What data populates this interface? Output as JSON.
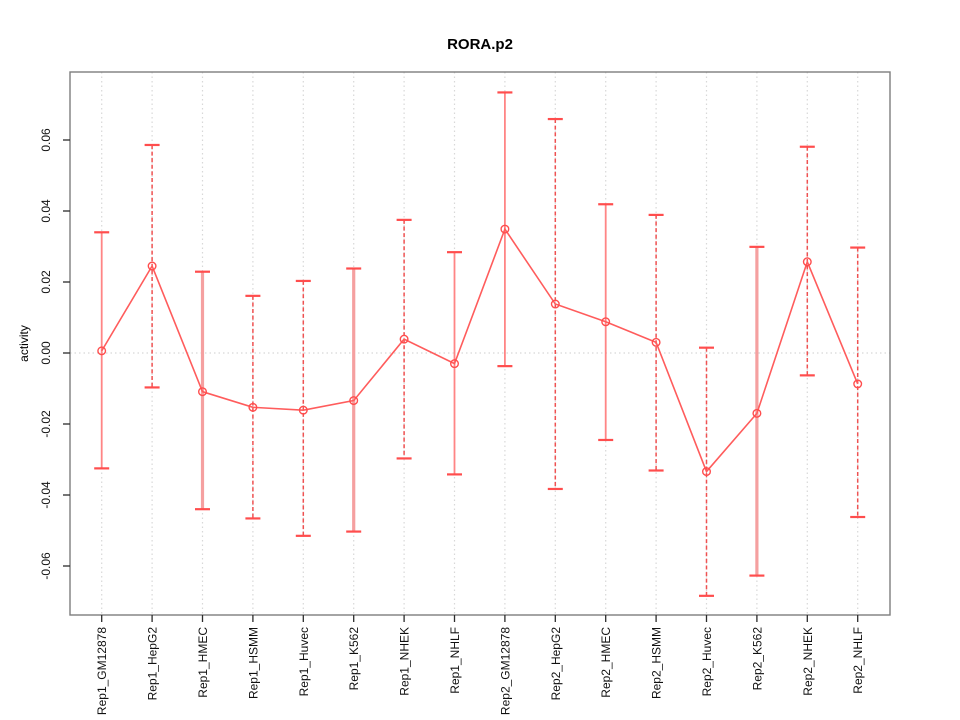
{
  "window": {
    "title": "RORA.p2",
    "background": "#ffffff"
  },
  "chart_data": {
    "type": "line",
    "title": "RORA.p2",
    "xlabel": "",
    "ylabel": "activity",
    "legend": "none",
    "grid": {
      "vertical": "dotted gray line at every category",
      "horizontal": "dotted gray line at y = 0 only"
    },
    "categories": [
      "Rep1_GM12878",
      "Rep1_HepG2",
      "Rep1_HMEC",
      "Rep1_HSMM",
      "Rep1_Huvec",
      "Rep1_K562",
      "Rep1_NHEK",
      "Rep1_NHLF",
      "Rep2_GM12878",
      "Rep2_HepG2",
      "Rep2_HMEC",
      "Rep2_HSMM",
      "Rep2_Huvec",
      "Rep2_K562",
      "Rep2_NHEK",
      "Rep2_NHLF"
    ],
    "series": [
      {
        "name": "activity",
        "marker": "open-circle",
        "values": [
          0.0006,
          0.0245,
          -0.0109,
          -0.0153,
          -0.0161,
          -0.0134,
          0.0039,
          -0.003,
          0.0349,
          0.0138,
          0.0088,
          0.003,
          -0.0334,
          -0.017,
          0.0257,
          -0.0087
        ],
        "error_high": [
          0.034,
          0.0586,
          0.0229,
          0.0161,
          0.0203,
          0.0238,
          0.0375,
          0.0284,
          0.0734,
          0.0659,
          0.0419,
          0.0389,
          0.0015,
          0.0299,
          0.0581,
          0.0297
        ],
        "error_low": [
          -0.0325,
          -0.0097,
          -0.044,
          -0.0466,
          -0.0515,
          -0.0503,
          -0.0297,
          -0.0342,
          -0.0037,
          -0.0383,
          -0.0245,
          -0.0331,
          -0.0684,
          -0.0627,
          -0.0063,
          -0.0462
        ]
      }
    ],
    "bar_styles": [
      "solid",
      "dashed",
      "thick",
      "dashed",
      "dashed",
      "thick",
      "dashed",
      "solid",
      "solid",
      "dashed",
      "solid",
      "dashed",
      "dashed",
      "thick",
      "dashed",
      "dashed"
    ],
    "yticks": [
      -0.06,
      -0.04,
      -0.02,
      0.0,
      0.02,
      0.04,
      0.06
    ],
    "ytick_labels": [
      "-0.06",
      "-0.04",
      "-0.02",
      "0.00",
      "0.02",
      "0.04",
      "0.06"
    ],
    "ylim": [
      -0.0738,
      0.0792
    ],
    "colors": {
      "series_line": "#ff5c5c",
      "marker_stroke": "#ff4d4d",
      "error_bar": "#ee4040",
      "error_bar_light": "#f5a0a0",
      "error_bar_solid": "#ff8585",
      "cap": "#ff4d4d",
      "grid": "#d8d8d8",
      "box": "#7d7d7d",
      "tick": "#2b2b2b",
      "text": "#111111"
    }
  }
}
